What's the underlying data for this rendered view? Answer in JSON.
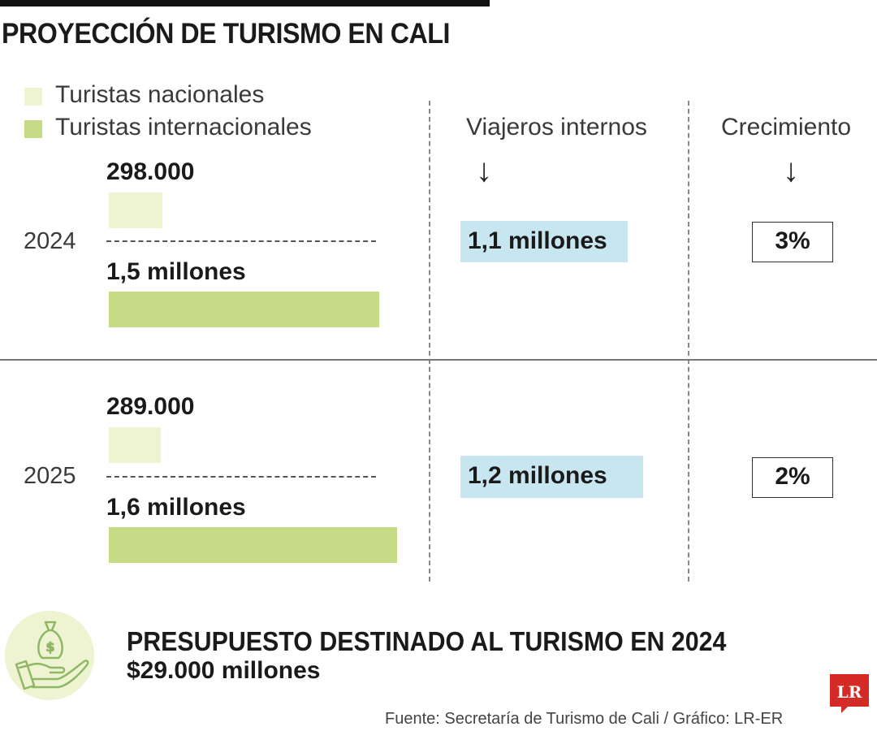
{
  "title": "PROYECCIÓN DE TURISMO EN CALI",
  "legend": [
    {
      "label": "Turistas nacionales",
      "color": "#eef3d2"
    },
    {
      "label": "Turistas internacionales",
      "color": "#c5db85"
    }
  ],
  "columns": {
    "internal": "Viajeros internos",
    "growth": "Crecimiento"
  },
  "rows": [
    {
      "year": "2024",
      "national_label": "298.000",
      "international_label": "1,5 millones",
      "internal_label": "1,1 millones",
      "growth_label": "3%"
    },
    {
      "year": "2025",
      "national_label": "289.000",
      "international_label": "1,6 millones",
      "internal_label": "1,2 millones",
      "growth_label": "2%"
    }
  ],
  "chart_data": {
    "type": "bar",
    "categories": [
      "2024",
      "2025"
    ],
    "series": [
      {
        "name": "Turistas nacionales",
        "values": [
          298000,
          289000
        ]
      },
      {
        "name": "Turistas internacionales",
        "values": [
          1500000,
          1600000
        ]
      }
    ],
    "internal_travelers": [
      1100000,
      1200000
    ],
    "growth_percent": [
      3,
      2
    ],
    "colors": {
      "national": "#eef3d2",
      "international": "#c5db85",
      "internal_box": "#c8e6f0"
    }
  },
  "budget": {
    "title": "PRESUPUESTO DESTINADO AL TURISMO EN 2024",
    "value": "$29.000 millones"
  },
  "source": "Fuente: Secretaría de Turismo de Cali / Gráfico: LR-ER",
  "logo_text": "LR",
  "icons": {
    "budget": "money-bag-hand-icon",
    "arrow": "down-arrow-icon"
  }
}
